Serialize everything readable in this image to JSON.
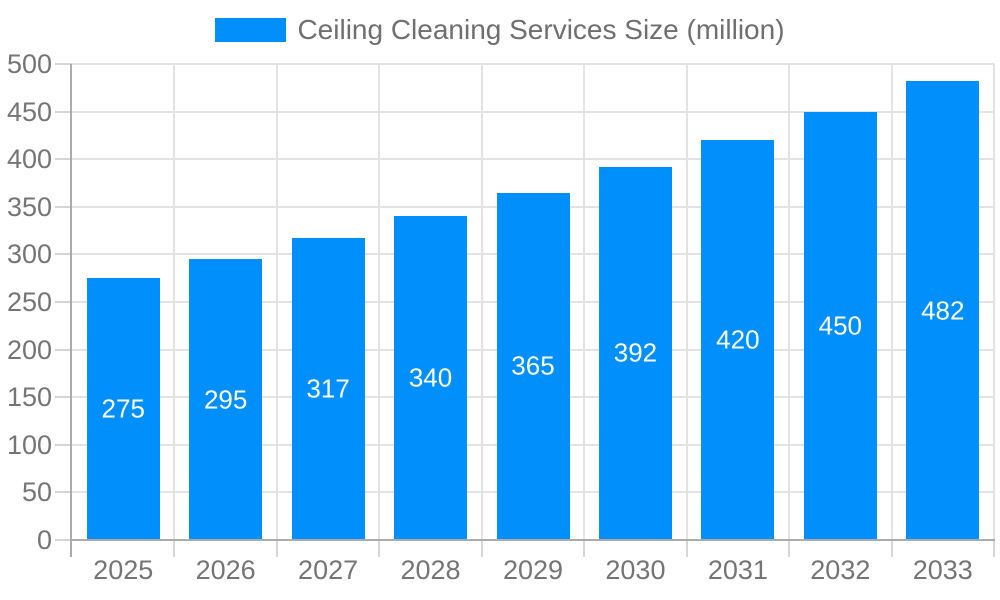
{
  "chart_data": {
    "type": "bar",
    "title": "Ceiling Cleaning Services Size (million)",
    "series_name": "Ceiling Cleaning Services Size (million)",
    "categories": [
      "2025",
      "2026",
      "2027",
      "2028",
      "2029",
      "2030",
      "2031",
      "2032",
      "2033"
    ],
    "values": [
      275,
      295,
      317,
      340,
      365,
      392,
      420,
      450,
      482
    ],
    "value_labels": [
      "275",
      "295",
      "317",
      "340",
      "365",
      "392",
      "420",
      "450",
      "482"
    ],
    "yticks": [
      0,
      50,
      100,
      150,
      200,
      250,
      300,
      350,
      400,
      450,
      500
    ],
    "ylim": [
      0,
      500
    ],
    "xlabel": "",
    "ylabel": "",
    "grid": true,
    "legend_position": "top-center",
    "colors": {
      "bar": "#008FFB",
      "bar_value_text": "#ffffff",
      "axis_text": "#757575",
      "legend_text": "#6f6f6f",
      "gridline": "#e3e3e3",
      "axis_line": "#ababab",
      "tick": "#d6d6d6",
      "background": "#ffffff"
    }
  }
}
